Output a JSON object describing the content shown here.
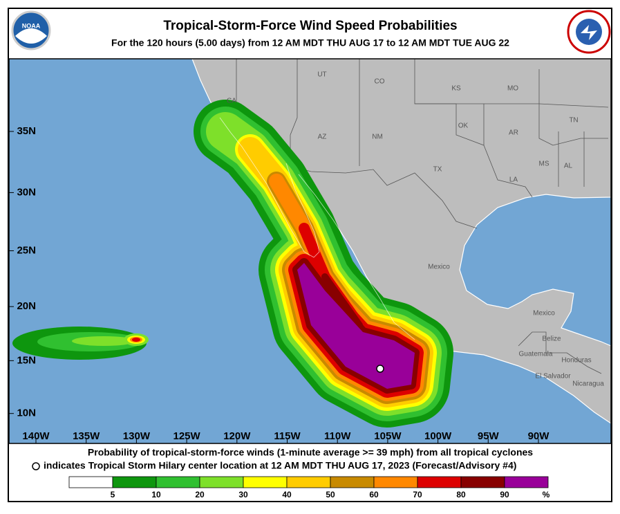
{
  "header": {
    "title": "Tropical-Storm-Force Wind Speed Probabilities",
    "subtitle": "For the 120 hours (5.00 days) from 12 AM MDT THU AUG 17 to 12 AM MDT TUE AUG 22",
    "logo_left": "NOAA"
  },
  "map": {
    "lat_ticks": [
      {
        "value": 35,
        "label": "35N"
      },
      {
        "value": 30,
        "label": "30N"
      },
      {
        "value": 25,
        "label": "25N"
      },
      {
        "value": 20,
        "label": "20N"
      },
      {
        "value": 15,
        "label": "15N"
      },
      {
        "value": 10,
        "label": "10N"
      }
    ],
    "lon_ticks": [
      {
        "value": -140,
        "label": "140W"
      },
      {
        "value": -135,
        "label": "135W"
      },
      {
        "value": -130,
        "label": "130W"
      },
      {
        "value": -125,
        "label": "125W"
      },
      {
        "value": -120,
        "label": "120W"
      },
      {
        "value": -115,
        "label": "115W"
      },
      {
        "value": -110,
        "label": "110W"
      },
      {
        "value": -105,
        "label": "105W"
      },
      {
        "value": -100,
        "label": "100W"
      },
      {
        "value": -95,
        "label": "95W"
      },
      {
        "value": -90,
        "label": "90W"
      }
    ],
    "places": [
      "UT",
      "CO",
      "KS",
      "MO",
      "CA",
      "OK",
      "AR",
      "TN",
      "AZ",
      "NM",
      "MS",
      "AL",
      "TX",
      "LA",
      "Mexico",
      "Mexico",
      "Belize",
      "Guatemala",
      "Honduras",
      "El Salvador",
      "Nicaragua"
    ]
  },
  "footer": {
    "line1": "Probability of tropical-storm-force winds (1-minute average >= 39 mph) from all tropical cyclones",
    "line2": "indicates Tropical Storm Hilary center location at 12 AM MDT THU AUG 17, 2023 (Forecast/Advisory #4)"
  },
  "legend": {
    "ticks": [
      5,
      10,
      20,
      30,
      40,
      50,
      60,
      70,
      80,
      90
    ],
    "unit": "%",
    "colors": [
      "#ffffff",
      "#0e960e",
      "#30c030",
      "#7ee02a",
      "#ffff00",
      "#ffcc00",
      "#c88a00",
      "#ff8800",
      "#dd0000",
      "#880000",
      "#990099"
    ]
  }
}
